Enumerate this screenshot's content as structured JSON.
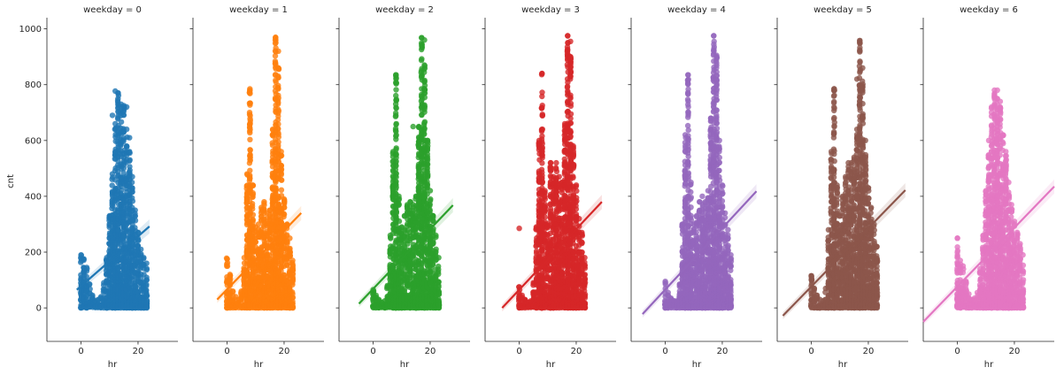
{
  "chart_data": {
    "type": "scatter",
    "subtype": "faceted scatter with linear regression fit (lmplot)",
    "ylabel": "cnt",
    "xlabel": "hr",
    "xlim": [
      -12,
      34
    ],
    "ylim": [
      -120,
      1040
    ],
    "xticks": [
      0,
      20
    ],
    "yticks": [
      0,
      200,
      400,
      600,
      800,
      1000
    ],
    "grid": false,
    "panels": [
      {
        "title": "weekday = 0",
        "color": "#1f77b4",
        "regression": {
          "x_start": -1.5,
          "x_end": 24,
          "y_start": 65,
          "y_end": 292
        },
        "column_max": [
          190,
          175,
          145,
          85,
          45,
          25,
          30,
          40,
          90,
          180,
          330,
          480,
          660,
          770,
          730,
          720,
          640,
          560,
          470,
          350,
          270,
          210,
          180,
          160
        ],
        "outliers": [
          [
            12,
            777
          ],
          [
            13,
            770
          ],
          [
            15,
            725
          ],
          [
            16,
            720
          ],
          [
            11,
            690
          ],
          [
            17,
            610
          ]
        ]
      },
      {
        "title": "weekday = 1",
        "color": "#ff7f0e",
        "regression": {
          "x_start": -3.5,
          "x_end": 26,
          "y_start": 30,
          "y_end": 340
        },
        "column_max": [
          175,
          120,
          60,
          40,
          30,
          60,
          180,
          480,
          780,
          440,
          290,
          300,
          360,
          380,
          340,
          350,
          640,
          970,
          860,
          560,
          390,
          300,
          250,
          170
        ],
        "outliers": [
          [
            8,
            785
          ],
          [
            17,
            968
          ],
          [
            18,
            920
          ],
          [
            0,
            175
          ],
          [
            -0.2,
            178
          ]
        ]
      },
      {
        "title": "weekday = 2",
        "color": "#2ca02c",
        "regression": {
          "x_start": -5,
          "x_end": 28,
          "y_start": 15,
          "y_end": 368
        },
        "column_max": [
          65,
          45,
          30,
          20,
          25,
          80,
          260,
          560,
          835,
          400,
          290,
          330,
          370,
          380,
          370,
          400,
          650,
          968,
          870,
          600,
          420,
          330,
          260,
          180
        ],
        "outliers": [
          [
            8,
            835
          ],
          [
            17,
            968
          ],
          [
            18,
            960
          ],
          [
            14,
            650
          ],
          [
            12,
            355
          ]
        ]
      },
      {
        "title": "weekday = 3",
        "color": "#d62728",
        "regression": {
          "x_start": -6,
          "x_end": 29,
          "y_start": 0,
          "y_end": 380
        },
        "column_max": [
          75,
          45,
          30,
          20,
          25,
          90,
          290,
          600,
          840,
          420,
          300,
          520,
          470,
          520,
          440,
          450,
          660,
          975,
          900,
          580,
          440,
          320,
          270,
          180
        ],
        "outliers": [
          [
            0,
            285
          ],
          [
            8,
            840
          ],
          [
            17,
            975
          ],
          [
            18,
            955
          ],
          [
            11,
            520
          ],
          [
            14,
            470
          ]
        ]
      },
      {
        "title": "weekday = 4",
        "color": "#9467bd",
        "regression": {
          "x_start": -8,
          "x_end": 32,
          "y_start": -22,
          "y_end": 418
        },
        "column_max": [
          90,
          55,
          35,
          25,
          25,
          85,
          300,
          620,
          835,
          450,
          300,
          330,
          380,
          400,
          380,
          420,
          680,
          975,
          900,
          600,
          440,
          340,
          280,
          190
        ],
        "outliers": [
          [
            8,
            835
          ],
          [
            17,
            975
          ],
          [
            18,
            905
          ],
          [
            0,
            95
          ]
        ]
      },
      {
        "title": "weekday = 5",
        "color": "#8c564b",
        "regression": {
          "x_start": -10,
          "x_end": 33,
          "y_start": -28,
          "y_end": 422
        },
        "column_max": [
          115,
          70,
          45,
          30,
          25,
          70,
          280,
          560,
          785,
          440,
          330,
          400,
          470,
          520,
          520,
          540,
          640,
          958,
          860,
          600,
          430,
          360,
          300,
          220
        ],
        "outliers": [
          [
            8,
            785
          ],
          [
            17,
            958
          ],
          [
            16,
            820
          ],
          [
            0,
            115
          ]
        ]
      },
      {
        "title": "weekday = 6",
        "color": "#e377c2",
        "regression": {
          "x_start": -12,
          "x_end": 34,
          "y_start": -50,
          "y_end": 435
        },
        "column_max": [
          250,
          170,
          150,
          95,
          50,
          30,
          35,
          55,
          140,
          260,
          420,
          600,
          720,
          780,
          750,
          720,
          620,
          560,
          450,
          370,
          310,
          270,
          230,
          190
        ],
        "outliers": [
          [
            14,
            780
          ],
          [
            13,
            760
          ],
          [
            15,
            740
          ],
          [
            0,
            250
          ]
        ]
      }
    ]
  }
}
